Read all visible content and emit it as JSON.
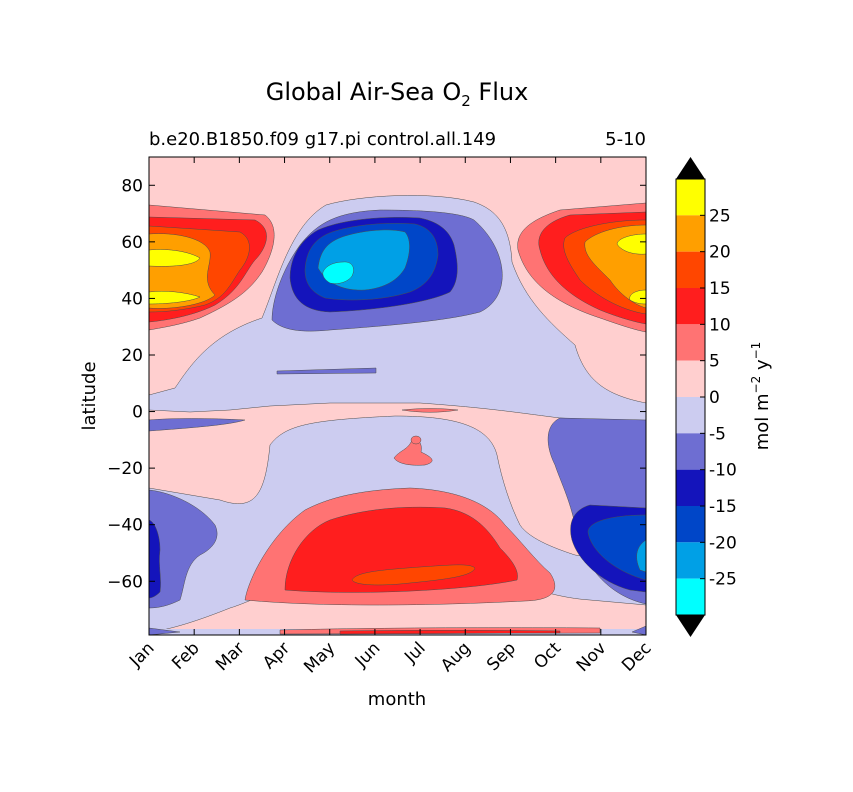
{
  "chart_data": {
    "type": "filled-contour",
    "title": "Global Air-Sea O",
    "title_subscript": "2",
    "title_suffix": " Flux",
    "subtitle_left": "b.e20.B1850.f09 g17.pi control.all.149",
    "subtitle_right": "5-10",
    "xlabel": "month",
    "ylabel": "latitude",
    "x_categories": [
      "Jan",
      "Feb",
      "Mar",
      "Apr",
      "May",
      "Jun",
      "Jul",
      "Aug",
      "Sep",
      "Oct",
      "Nov",
      "Dec"
    ],
    "ylim": [
      -79,
      90
    ],
    "y_ticks": [
      80,
      60,
      40,
      20,
      0,
      -20,
      -40,
      -60
    ],
    "y_tick_labels": [
      "80",
      "60",
      "40",
      "20",
      "0",
      "−20",
      "−40",
      "−60"
    ],
    "colorbar": {
      "label_main": "mol m",
      "label_exp1": "−2",
      "label_mid": " y",
      "label_exp2": "−1",
      "tick_labels": [
        "25",
        "20",
        "15",
        "10",
        "5",
        "0",
        "-5",
        "-10",
        "-15",
        "-20",
        "-25"
      ],
      "levels": [
        {
          "range": [
            25,
            30
          ],
          "color": "#ffff00"
        },
        {
          "range": [
            20,
            25
          ],
          "color": "#ff9f00"
        },
        {
          "range": [
            15,
            20
          ],
          "color": "#ff4600"
        },
        {
          "range": [
            10,
            15
          ],
          "color": "#ff1e1e"
        },
        {
          "range": [
            5,
            10
          ],
          "color": "#ff7373"
        },
        {
          "range": [
            0,
            5
          ],
          "color": "#ffcfcf"
        },
        {
          "range": [
            -5,
            0
          ],
          "color": "#ccccf0"
        },
        {
          "range": [
            -10,
            -5
          ],
          "color": "#6e6ed2"
        },
        {
          "range": [
            -15,
            -10
          ],
          "color": "#1414bb"
        },
        {
          "range": [
            -20,
            -15
          ],
          "color": "#0046c8"
        },
        {
          "range": [
            -25,
            -20
          ],
          "color": "#00a0e6"
        },
        {
          "range": [
            -30,
            -25
          ],
          "color": "#00ffff"
        }
      ],
      "extend_max_color": "#000000",
      "extend_min_color": "#000000"
    },
    "regions": [
      {
        "name": "nh-winter-outgassing-early",
        "months": [
          "Jan",
          "Apr"
        ],
        "lat": [
          30,
          73
        ],
        "peak_value": 25
      },
      {
        "name": "nh-winter-outgassing-late",
        "months": [
          "Oct",
          "Dec"
        ],
        "lat": [
          30,
          73
        ],
        "peak_value": 25
      },
      {
        "name": "nh-summer-uptake",
        "months": [
          "Apr",
          "Sep"
        ],
        "lat": [
          26,
          76
        ],
        "peak_value": -27
      },
      {
        "name": "sh-winter-outgassing",
        "months": [
          "Mar",
          "Oct"
        ],
        "lat": [
          -72,
          -28
        ],
        "peak_value": 15
      },
      {
        "name": "sh-summer-uptake-late",
        "months": [
          "Oct",
          "Dec"
        ],
        "lat": [
          -72,
          -28
        ],
        "peak_value": -22
      },
      {
        "name": "sh-summer-uptake-early",
        "months": [
          "Jan",
          "Mar"
        ],
        "lat": [
          -72,
          -28
        ],
        "peak_value": -12
      }
    ]
  }
}
